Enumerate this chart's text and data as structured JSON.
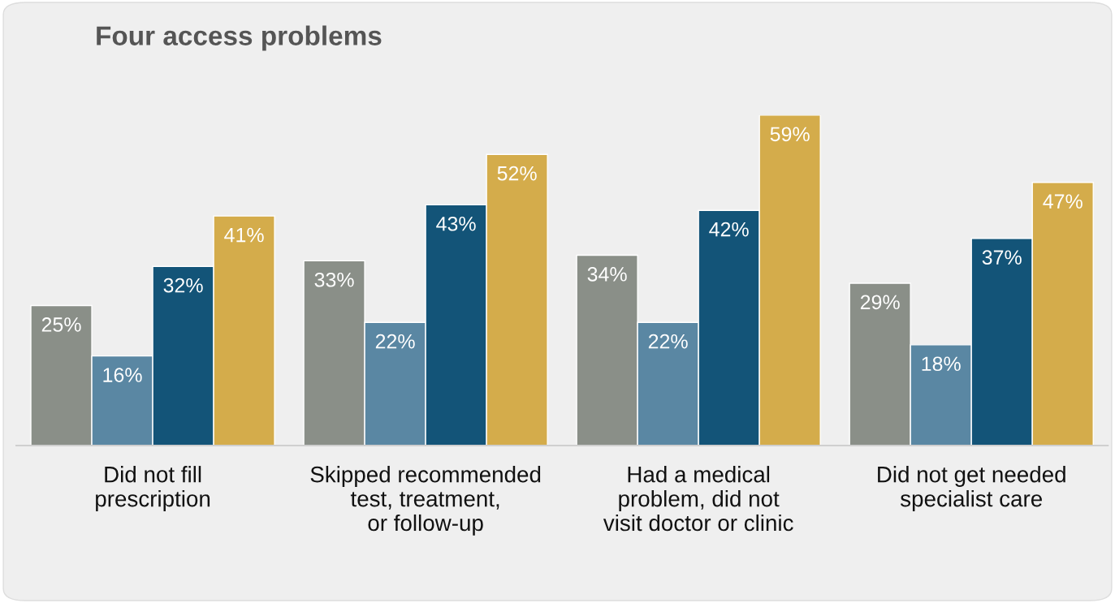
{
  "chart_data": {
    "type": "bar",
    "title": "Four access problems",
    "categories": [
      "Did not fill\nprescription",
      "Skipped recommended\ntest, treatment,\nor follow-up",
      "Had a medical\nproblem, did not\nvisit doctor or clinic",
      "Did not get needed\nspecialist care"
    ],
    "series": [
      {
        "color": "#8a8f88",
        "values": [
          25,
          33,
          34,
          29
        ],
        "value_labels": [
          "25%",
          "33%",
          "34%",
          "29%"
        ]
      },
      {
        "color": "#5a87a3",
        "values": [
          16,
          22,
          22,
          18
        ],
        "value_labels": [
          "16%",
          "22%",
          "22%",
          "18%"
        ]
      },
      {
        "color": "#135478",
        "values": [
          32,
          43,
          42,
          37
        ],
        "value_labels": [
          "32%",
          "43%",
          "42%",
          "37%"
        ]
      },
      {
        "color": "#d4ac4b",
        "values": [
          41,
          52,
          59,
          47
        ],
        "value_labels": [
          "41%",
          "52%",
          "59%",
          "47%"
        ]
      }
    ],
    "tick_labels": "x",
    "grid": false,
    "legend": false
  }
}
